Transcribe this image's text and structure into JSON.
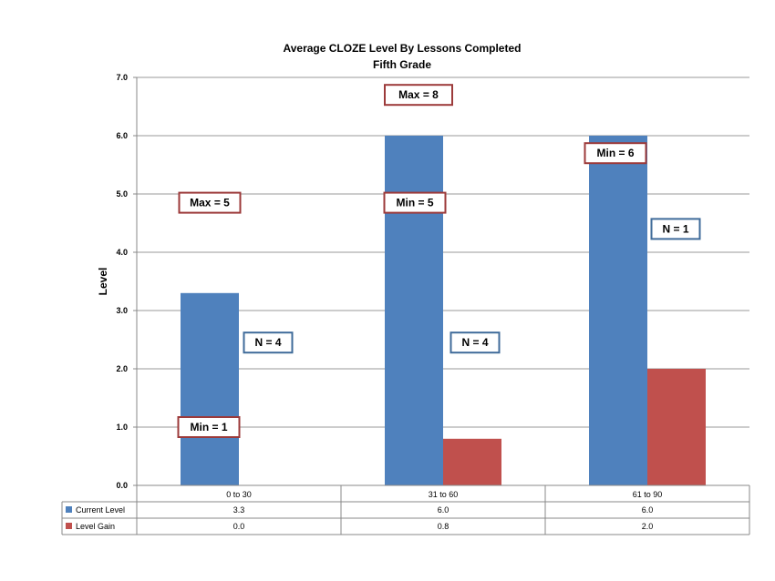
{
  "chart_data": {
    "type": "bar",
    "title": "Average CLOZE Level By Lessons Completed",
    "subtitle": "Fifth Grade",
    "xlabel": "",
    "ylabel": "Level",
    "ylim": [
      0,
      7
    ],
    "yticks": [
      "0.0",
      "1.0",
      "2.0",
      "3.0",
      "4.0",
      "5.0",
      "6.0",
      "7.0"
    ],
    "grid": true,
    "categories": [
      "0 to 30",
      "31 to 60",
      "61 to 90"
    ],
    "series": [
      {
        "name": "Current Level",
        "color": "#4F81BD",
        "values": [
          3.3,
          6.0,
          6.0
        ],
        "labels": [
          "3.3",
          "6.0",
          "6.0"
        ]
      },
      {
        "name": "Level Gain",
        "color": "#C0504D",
        "values": [
          0.0,
          0.8,
          2.0
        ],
        "labels": [
          "0.0",
          "0.8",
          "2.0"
        ]
      }
    ],
    "data_table": true,
    "annotations": [
      {
        "text": "Max = 5",
        "category": 0,
        "y": 4.85,
        "border": "#9C3A3A"
      },
      {
        "text": "N = 4",
        "category": 0,
        "y": 2.45,
        "border": "#3F6B9A"
      },
      {
        "text": "Min = 1",
        "category": 0,
        "y": 1.0,
        "border": "#9C3A3A"
      },
      {
        "text": "Max =  8",
        "category": 1,
        "y": 6.7,
        "border": "#9C3A3A"
      },
      {
        "text": "Min = 5",
        "category": 1,
        "y": 4.85,
        "border": "#9C3A3A"
      },
      {
        "text": "N = 4",
        "category": 1,
        "y": 2.45,
        "border": "#3F6B9A"
      },
      {
        "text": "Min = 6",
        "category": 2,
        "y": 5.7,
        "border": "#9C3A3A"
      },
      {
        "text": "N = 1",
        "category": 2,
        "y": 4.4,
        "border": "#3F6B9A"
      }
    ]
  }
}
